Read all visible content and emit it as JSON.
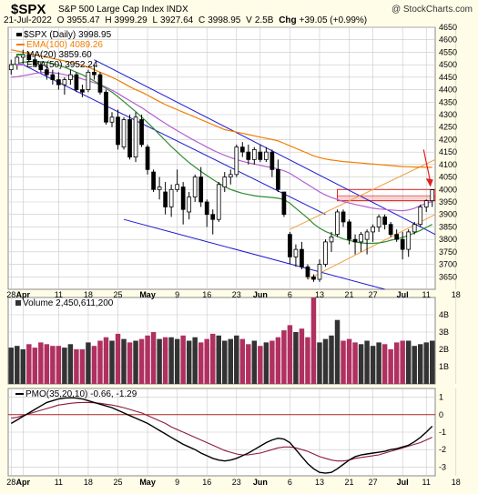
{
  "header": {
    "symbol": "$SPX",
    "name": "S&P 500 Large Cap Index",
    "exchange": "INDX",
    "brand": "@ StockCharts.com",
    "date": "21-Jul-2022",
    "open_label": "O",
    "open": "3955.47",
    "high_label": "H",
    "high": "3999.29",
    "low_label": "L",
    "low": "3927.64",
    "close_label": "C",
    "close": "3998.95",
    "vol_label": "V",
    "vol": "2.5B",
    "chg_label": "Chg",
    "chg": "+39.05 (+0.99%)"
  },
  "legend": {
    "daily": "$SPX (Daily) 3998.95",
    "ema100": "EMA(100) 4089.26",
    "ma20": "MA(20) 3859.60",
    "ema50": "EMA(50) 3952.24"
  },
  "volume_label": "Volume 2,450,611,200",
  "pmo_label": "PMO(35,20,10) -0.66, -1.29",
  "colors": {
    "up": "#000000",
    "down": "#000000",
    "ema100": "#f07d00",
    "ma20": "#2e8b2e",
    "ema50": "#b35fd0",
    "vol_up": "#333333",
    "vol_down": "#b03060",
    "trend": "#1a1ad0",
    "channel": "#f0a040",
    "zone": "#dd2222",
    "arrow": "#dd2222",
    "pmo": "#000000",
    "pmo_signal": "#8b1a3a",
    "zero": "#aa2222",
    "grid": "#c8c8c8",
    "bg": "#ffffff",
    "frame": "#fffde8"
  },
  "chart_data": [
    {
      "type": "candlestick",
      "title": "$SPX (Daily) 3998.95",
      "ylim": [
        3600,
        4650
      ],
      "yticks": [
        3650,
        3700,
        3750,
        3800,
        3850,
        3900,
        3950,
        4000,
        4050,
        4100,
        4150,
        4200,
        4250,
        4300,
        4350,
        4400,
        4450,
        4500,
        4550,
        4600,
        4650
      ],
      "x_labels": [
        "28",
        "Apr",
        "11",
        "18",
        "25",
        "May",
        "9",
        "16",
        "23",
        "Jun",
        "6",
        "13",
        "21",
        "27",
        "Jul",
        "11",
        "18"
      ],
      "x_label_index": [
        0,
        2,
        8,
        13,
        18,
        23,
        28,
        33,
        38,
        42,
        47,
        52,
        57,
        61,
        66,
        70,
        75
      ],
      "ohlc": [
        [
          4480,
          4520,
          4460,
          4500
        ],
        [
          4500,
          4540,
          4480,
          4530
        ],
        [
          4530,
          4560,
          4500,
          4540
        ],
        [
          4540,
          4550,
          4510,
          4520
        ],
        [
          4520,
          4540,
          4490,
          4500
        ],
        [
          4500,
          4510,
          4470,
          4480
        ],
        [
          4480,
          4500,
          4440,
          4460
        ],
        [
          4460,
          4480,
          4420,
          4440
        ],
        [
          4440,
          4470,
          4400,
          4420
        ],
        [
          4420,
          4450,
          4380,
          4440
        ],
        [
          4440,
          4480,
          4420,
          4460
        ],
        [
          4460,
          4470,
          4390,
          4400
        ],
        [
          4400,
          4420,
          4370,
          4390
        ],
        [
          4400,
          4480,
          4390,
          4470
        ],
        [
          4470,
          4500,
          4440,
          4460
        ],
        [
          4460,
          4470,
          4380,
          4390
        ],
        [
          4390,
          4400,
          4260,
          4270
        ],
        [
          4270,
          4310,
          4250,
          4290
        ],
        [
          4290,
          4320,
          4160,
          4180
        ],
        [
          4170,
          4290,
          4160,
          4280
        ],
        [
          4280,
          4300,
          4120,
          4130
        ],
        [
          4130,
          4310,
          4110,
          4290
        ],
        [
          4280,
          4300,
          4170,
          4180
        ],
        [
          4170,
          4180,
          4060,
          4080
        ],
        [
          4070,
          4080,
          3990,
          4000
        ],
        [
          4000,
          4050,
          3960,
          4010
        ],
        [
          3990,
          4030,
          3900,
          3930
        ],
        [
          3930,
          4020,
          3890,
          4000
        ],
        [
          4000,
          4080,
          3990,
          4020
        ],
        [
          4010,
          4030,
          3860,
          3920
        ],
        [
          3910,
          3990,
          3880,
          3970
        ],
        [
          3970,
          4060,
          3950,
          4050
        ],
        [
          4050,
          4090,
          3930,
          3950
        ],
        [
          3950,
          3960,
          3850,
          3900
        ],
        [
          3900,
          3920,
          3820,
          3880
        ],
        [
          3880,
          4030,
          3870,
          4020
        ],
        [
          4010,
          4070,
          3990,
          4050
        ],
        [
          4050,
          4080,
          4020,
          4060
        ],
        [
          4060,
          4180,
          4050,
          4170
        ],
        [
          4170,
          4190,
          4130,
          4150
        ],
        [
          4150,
          4180,
          4100,
          4120
        ],
        [
          4120,
          4170,
          4100,
          4160
        ],
        [
          4150,
          4180,
          4110,
          4120
        ],
        [
          4120,
          4170,
          4110,
          4150
        ],
        [
          4150,
          4160,
          4050,
          4080
        ],
        [
          4080,
          4120,
          3990,
          4000
        ],
        [
          3990,
          3990,
          3890,
          3900
        ],
        [
          3820,
          3830,
          3700,
          3730
        ],
        [
          3730,
          3780,
          3690,
          3760
        ],
        [
          3760,
          3790,
          3680,
          3690
        ],
        [
          3690,
          3700,
          3640,
          3650
        ],
        [
          3650,
          3660,
          3630,
          3640
        ],
        [
          3640,
          3720,
          3630,
          3700
        ],
        [
          3700,
          3800,
          3690,
          3790
        ],
        [
          3790,
          3830,
          3750,
          3810
        ],
        [
          3820,
          3920,
          3810,
          3910
        ],
        [
          3910,
          3920,
          3850,
          3870
        ],
        [
          3870,
          3880,
          3780,
          3800
        ],
        [
          3800,
          3820,
          3740,
          3790
        ],
        [
          3790,
          3830,
          3750,
          3820
        ],
        [
          3800,
          3840,
          3740,
          3830
        ],
        [
          3830,
          3860,
          3790,
          3850
        ],
        [
          3850,
          3900,
          3830,
          3890
        ],
        [
          3890,
          3900,
          3840,
          3860
        ],
        [
          3860,
          3870,
          3810,
          3820
        ],
        [
          3820,
          3840,
          3790,
          3800
        ],
        [
          3800,
          3830,
          3720,
          3760
        ],
        [
          3760,
          3840,
          3730,
          3830
        ],
        [
          3830,
          3870,
          3820,
          3860
        ],
        [
          3860,
          3940,
          3850,
          3930
        ],
        [
          3930,
          3960,
          3910,
          3955
        ],
        [
          3955,
          4000,
          3930,
          3999
        ]
      ],
      "ema100": [
        4560,
        4555,
        4550,
        4545,
        4540,
        4535,
        4530,
        4525,
        4520,
        4515,
        4510,
        4505,
        4498,
        4490,
        4480,
        4470,
        4460,
        4450,
        4438,
        4425,
        4412,
        4400,
        4390,
        4378,
        4365,
        4352,
        4340,
        4330,
        4320,
        4310,
        4300,
        4290,
        4280,
        4270,
        4260,
        4250,
        4240,
        4235,
        4230,
        4225,
        4220,
        4215,
        4210,
        4205,
        4200,
        4195,
        4185,
        4175,
        4165,
        4155,
        4145,
        4135,
        4128,
        4122,
        4118,
        4115,
        4112,
        4110,
        4108,
        4106,
        4104,
        4102,
        4100,
        4098,
        4096,
        4094,
        4092,
        4091,
        4090,
        4090,
        4089,
        4089
      ],
      "ma20": [
        4500,
        4505,
        4510,
        4512,
        4514,
        4512,
        4510,
        4505,
        4498,
        4490,
        4480,
        4470,
        4460,
        4448,
        4435,
        4420,
        4405,
        4390,
        4372,
        4352,
        4332,
        4312,
        4290,
        4268,
        4245,
        4220,
        4196,
        4172,
        4150,
        4128,
        4108,
        4090,
        4072,
        4056,
        4040,
        4025,
        4012,
        4000,
        3992,
        3985,
        3980,
        3975,
        3972,
        3970,
        3968,
        3965,
        3960,
        3945,
        3925,
        3905,
        3885,
        3862,
        3845,
        3832,
        3822,
        3812,
        3802,
        3796,
        3790,
        3786,
        3784,
        3784,
        3786,
        3790,
        3796,
        3802,
        3808,
        3816,
        3826,
        3836,
        3848,
        3860
      ],
      "ema50": [
        4450,
        4452,
        4456,
        4460,
        4465,
        4468,
        4470,
        4468,
        4465,
        4460,
        4455,
        4450,
        4443,
        4436,
        4428,
        4420,
        4410,
        4398,
        4385,
        4370,
        4356,
        4342,
        4328,
        4312,
        4296,
        4280,
        4265,
        4250,
        4236,
        4222,
        4208,
        4195,
        4183,
        4170,
        4158,
        4147,
        4137,
        4128,
        4120,
        4113,
        4107,
        4102,
        4097,
        4092,
        4088,
        4082,
        4075,
        4065,
        4050,
        4035,
        4020,
        4005,
        3990,
        3978,
        3968,
        3960,
        3952,
        3946,
        3940,
        3935,
        3930,
        3925,
        3922,
        3920,
        3918,
        3916,
        3915,
        3918,
        3925,
        3935,
        3945,
        3952
      ]
    },
    {
      "type": "bar",
      "title": "Volume 2,450,611,200",
      "ylabel": "B",
      "ylim": [
        0,
        5
      ],
      "yticks": [
        1,
        2,
        3,
        4
      ],
      "values": [
        2.1,
        2.2,
        2.0,
        2.3,
        2.1,
        2.4,
        2.3,
        2.2,
        2.2,
        2.1,
        2.3,
        2.0,
        2.0,
        2.4,
        2.2,
        2.5,
        2.7,
        2.5,
        2.9,
        2.6,
        2.4,
        2.5,
        2.6,
        2.8,
        3.0,
        2.6,
        2.7,
        2.7,
        2.6,
        2.8,
        2.5,
        2.7,
        2.4,
        2.6,
        2.9,
        2.8,
        2.5,
        2.6,
        2.8,
        2.6,
        2.3,
        2.5,
        2.2,
        2.4,
        2.5,
        2.7,
        3.1,
        3.4,
        3.0,
        3.2,
        2.7,
        5.0,
        2.4,
        2.6,
        2.8,
        3.7,
        2.5,
        2.6,
        2.4,
        2.3,
        2.5,
        2.2,
        2.4,
        2.3,
        2.0,
        2.4,
        2.5,
        2.5,
        2.2,
        2.3,
        2.4,
        2.5
      ],
      "direction": [
        1,
        1,
        1,
        0,
        0,
        0,
        0,
        0,
        0,
        1,
        1,
        0,
        0,
        1,
        0,
        0,
        0,
        1,
        0,
        1,
        0,
        1,
        0,
        0,
        0,
        1,
        0,
        1,
        1,
        0,
        1,
        1,
        0,
        0,
        0,
        1,
        1,
        1,
        1,
        0,
        0,
        1,
        0,
        1,
        0,
        0,
        0,
        0,
        1,
        0,
        0,
        0,
        1,
        1,
        1,
        1,
        0,
        0,
        0,
        1,
        1,
        1,
        1,
        0,
        0,
        0,
        0,
        1,
        1,
        1,
        1,
        1
      ]
    },
    {
      "type": "line",
      "title": "PMO(35,20,10) -0.66, -1.29",
      "ylim": [
        -3.5,
        1.5
      ],
      "yticks": [
        -3,
        -2,
        -1,
        0,
        1
      ],
      "series": [
        {
          "name": "PMO(35,20,10)",
          "values": [
            -0.5,
            -0.3,
            -0.1,
            0.1,
            0.3,
            0.5,
            0.7,
            0.8,
            0.9,
            0.95,
            0.97,
            0.95,
            0.9,
            0.8,
            0.7,
            0.6,
            0.5,
            0.4,
            0.25,
            0.1,
            -0.05,
            -0.2,
            -0.35,
            -0.5,
            -0.7,
            -0.9,
            -1.1,
            -1.3,
            -1.5,
            -1.7,
            -1.85,
            -2.0,
            -2.2,
            -2.35,
            -2.5,
            -2.6,
            -2.65,
            -2.6,
            -2.5,
            -2.35,
            -2.2,
            -2.0,
            -1.8,
            -1.6,
            -1.45,
            -1.35,
            -1.4,
            -1.6,
            -2.0,
            -2.4,
            -2.8,
            -3.1,
            -3.3,
            -3.35,
            -3.3,
            -3.1,
            -2.85,
            -2.6,
            -2.4,
            -2.3,
            -2.25,
            -2.2,
            -2.15,
            -2.1,
            -2.0,
            -1.95,
            -1.85,
            -1.75,
            -1.55,
            -1.3,
            -1.0,
            -0.66
          ]
        },
        {
          "name": "signal",
          "values": [
            -0.2,
            -0.15,
            -0.05,
            0.05,
            0.15,
            0.25,
            0.35,
            0.45,
            0.55,
            0.6,
            0.65,
            0.68,
            0.7,
            0.7,
            0.68,
            0.65,
            0.6,
            0.55,
            0.48,
            0.4,
            0.3,
            0.2,
            0.1,
            -0.05,
            -0.2,
            -0.35,
            -0.5,
            -0.7,
            -0.85,
            -1.0,
            -1.15,
            -1.3,
            -1.45,
            -1.6,
            -1.75,
            -1.9,
            -2.05,
            -2.15,
            -2.25,
            -2.3,
            -2.3,
            -2.25,
            -2.2,
            -2.1,
            -2.0,
            -1.9,
            -1.85,
            -1.85,
            -1.9,
            -2.0,
            -2.1,
            -2.25,
            -2.4,
            -2.5,
            -2.6,
            -2.65,
            -2.65,
            -2.6,
            -2.5,
            -2.45,
            -2.4,
            -2.35,
            -2.3,
            -2.2,
            -2.1,
            -2.0,
            -1.9,
            -1.8,
            -1.7,
            -1.6,
            -1.45,
            -1.29
          ]
        }
      ]
    }
  ]
}
